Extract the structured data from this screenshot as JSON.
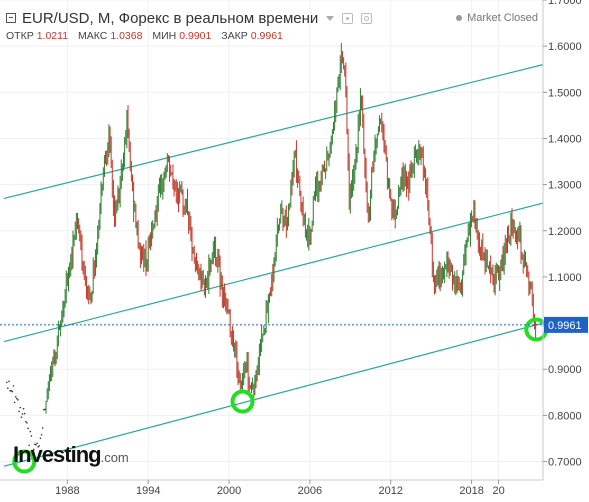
{
  "header": {
    "title": "EUR/USD, M, Форекс в реальном времени",
    "market_status": "Market Closed",
    "ohlc": [
      {
        "label": "ОТКР",
        "value": "1.0211"
      },
      {
        "label": "МАКС",
        "value": "1.0368"
      },
      {
        "label": "МИН",
        "value": "0.9901"
      },
      {
        "label": "ЗАКР",
        "value": "0.9961"
      }
    ]
  },
  "logo": {
    "brand": "Investing",
    "domain": ".com"
  },
  "icons": [
    "collapse-icon",
    "caret-down-icon",
    "eye-icon",
    "gear-icon",
    "status-dot-icon"
  ],
  "colors": {
    "up": "#2e7d32",
    "down": "#c0392b",
    "trendline": "#26a69a",
    "highlight_circle": "#22dd22",
    "price_label_bg": "#1e63c7",
    "price_line": "#1e63c7",
    "axis_text": "#444444"
  },
  "chart_data": {
    "type": "candlestick",
    "title": "EUR/USD, M, Форекс в реальном времени",
    "y_axis": {
      "position": "right",
      "ticks": [
        "1.7000",
        "1.6000",
        "1.5000",
        "1.4000",
        "1.3000",
        "1.2000",
        "1.1000",
        "1.0000",
        "0.9000",
        "0.8000",
        "0.7000"
      ],
      "ylim": [
        0.66,
        1.7
      ]
    },
    "x_axis": {
      "ticks": [
        "1988",
        "1994",
        "2000",
        "2006",
        "2012",
        "2018",
        "20"
      ],
      "xlim": [
        1983.0,
        2023.3
      ]
    },
    "last_price": {
      "value": 0.9961,
      "label": "0.9961"
    },
    "price_points": [
      {
        "x": 1983.5,
        "y": 0.875
      },
      {
        "x": 1984.0,
        "y": 0.845
      },
      {
        "x": 1984.4,
        "y": 0.825
      },
      {
        "x": 1984.8,
        "y": 0.8
      },
      {
        "x": 1985.1,
        "y": 0.755
      },
      {
        "x": 1985.5,
        "y": 0.74
      },
      {
        "x": 1985.8,
        "y": 0.72
      },
      {
        "x": 1986.2,
        "y": 0.79
      },
      {
        "x": 1986.6,
        "y": 0.86
      },
      {
        "x": 1987.0,
        "y": 0.93
      },
      {
        "x": 1987.4,
        "y": 0.98
      },
      {
        "x": 1987.8,
        "y": 1.06
      },
      {
        "x": 1988.2,
        "y": 1.12
      },
      {
        "x": 1988.7,
        "y": 1.24
      },
      {
        "x": 1989.2,
        "y": 1.1
      },
      {
        "x": 1989.7,
        "y": 1.05
      },
      {
        "x": 1990.2,
        "y": 1.18
      },
      {
        "x": 1990.7,
        "y": 1.35
      },
      {
        "x": 1991.1,
        "y": 1.4
      },
      {
        "x": 1991.5,
        "y": 1.22
      },
      {
        "x": 1991.9,
        "y": 1.3
      },
      {
        "x": 1992.4,
        "y": 1.44
      },
      {
        "x": 1992.9,
        "y": 1.26
      },
      {
        "x": 1993.4,
        "y": 1.15
      },
      {
        "x": 1993.9,
        "y": 1.14
      },
      {
        "x": 1994.4,
        "y": 1.22
      },
      {
        "x": 1994.9,
        "y": 1.28
      },
      {
        "x": 1995.4,
        "y": 1.35
      },
      {
        "x": 1995.9,
        "y": 1.3
      },
      {
        "x": 1996.4,
        "y": 1.27
      },
      {
        "x": 1996.9,
        "y": 1.25
      },
      {
        "x": 1997.4,
        "y": 1.13
      },
      {
        "x": 1997.9,
        "y": 1.1
      },
      {
        "x": 1998.4,
        "y": 1.09
      },
      {
        "x": 1998.9,
        "y": 1.17
      },
      {
        "x": 1999.2,
        "y": 1.12
      },
      {
        "x": 1999.6,
        "y": 1.06
      },
      {
        "x": 2000.0,
        "y": 1.01
      },
      {
        "x": 2000.4,
        "y": 0.95
      },
      {
        "x": 2000.8,
        "y": 0.86
      },
      {
        "x": 2001.2,
        "y": 0.92
      },
      {
        "x": 2001.6,
        "y": 0.86
      },
      {
        "x": 2002.0,
        "y": 0.87
      },
      {
        "x": 2002.4,
        "y": 0.98
      },
      {
        "x": 2002.8,
        "y": 1.02
      },
      {
        "x": 2003.3,
        "y": 1.12
      },
      {
        "x": 2003.8,
        "y": 1.25
      },
      {
        "x": 2004.3,
        "y": 1.22
      },
      {
        "x": 2004.9,
        "y": 1.36
      },
      {
        "x": 2005.4,
        "y": 1.24
      },
      {
        "x": 2005.9,
        "y": 1.18
      },
      {
        "x": 2006.4,
        "y": 1.28
      },
      {
        "x": 2006.9,
        "y": 1.32
      },
      {
        "x": 2007.4,
        "y": 1.36
      },
      {
        "x": 2007.9,
        "y": 1.47
      },
      {
        "x": 2008.3,
        "y": 1.57
      },
      {
        "x": 2008.6,
        "y": 1.55
      },
      {
        "x": 2008.9,
        "y": 1.27
      },
      {
        "x": 2009.3,
        "y": 1.32
      },
      {
        "x": 2009.8,
        "y": 1.49
      },
      {
        "x": 2010.3,
        "y": 1.22
      },
      {
        "x": 2010.8,
        "y": 1.38
      },
      {
        "x": 2011.3,
        "y": 1.45
      },
      {
        "x": 2011.8,
        "y": 1.3
      },
      {
        "x": 2012.3,
        "y": 1.23
      },
      {
        "x": 2012.8,
        "y": 1.32
      },
      {
        "x": 2013.3,
        "y": 1.3
      },
      {
        "x": 2013.8,
        "y": 1.37
      },
      {
        "x": 2014.3,
        "y": 1.38
      },
      {
        "x": 2014.8,
        "y": 1.24
      },
      {
        "x": 2015.2,
        "y": 1.08
      },
      {
        "x": 2015.7,
        "y": 1.1
      },
      {
        "x": 2016.2,
        "y": 1.13
      },
      {
        "x": 2016.7,
        "y": 1.1
      },
      {
        "x": 2017.2,
        "y": 1.07
      },
      {
        "x": 2017.6,
        "y": 1.16
      },
      {
        "x": 2018.1,
        "y": 1.24
      },
      {
        "x": 2018.6,
        "y": 1.16
      },
      {
        "x": 2019.1,
        "y": 1.14
      },
      {
        "x": 2019.6,
        "y": 1.1
      },
      {
        "x": 2020.1,
        "y": 1.1
      },
      {
        "x": 2020.6,
        "y": 1.18
      },
      {
        "x": 2021.0,
        "y": 1.22
      },
      {
        "x": 2021.5,
        "y": 1.19
      },
      {
        "x": 2021.9,
        "y": 1.13
      },
      {
        "x": 2022.3,
        "y": 1.08
      },
      {
        "x": 2022.6,
        "y": 1.02
      },
      {
        "x": 2022.8,
        "y": 0.9961
      }
    ],
    "trendlines": [
      {
        "x1": 1983.3,
        "y1": 1.27,
        "x2": 2023.3,
        "y2": 1.56
      },
      {
        "x1": 1983.3,
        "y1": 0.96,
        "x2": 2023.3,
        "y2": 1.26
      },
      {
        "x1": 1983.3,
        "y1": 0.69,
        "x2": 2023.3,
        "y2": 1.0
      }
    ],
    "highlights": [
      {
        "x": 1984.8,
        "y": 0.7
      },
      {
        "x": 2001.0,
        "y": 0.83
      },
      {
        "x": 2022.8,
        "y": 0.986
      }
    ]
  }
}
